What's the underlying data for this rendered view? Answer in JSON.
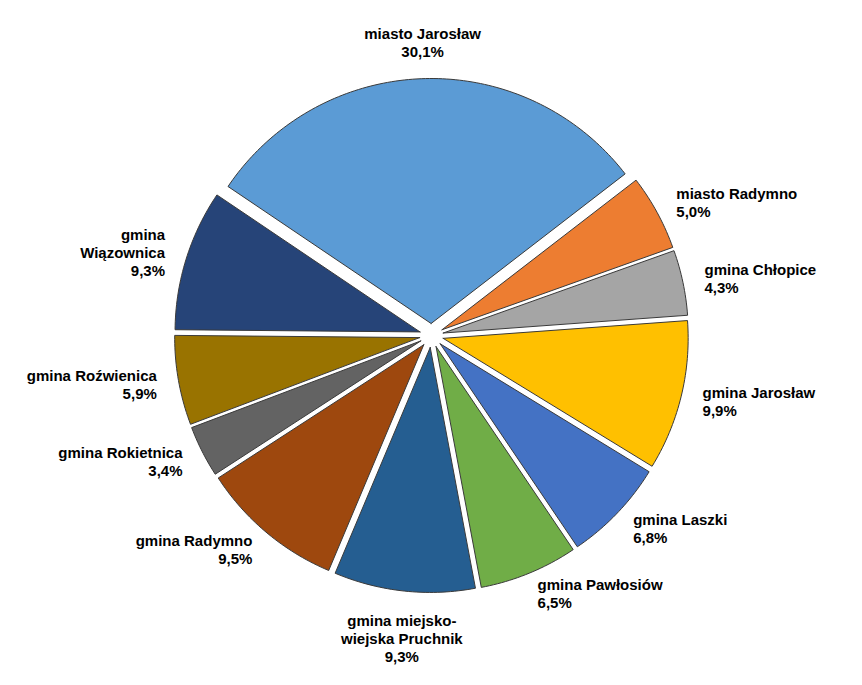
{
  "chart_data": {
    "type": "pie",
    "categories": [
      "miasto Jarosław",
      "miasto Radymno",
      "gmina Chłopice",
      "gmina Jarosław",
      "gmina Laszki",
      "gmina Pawłosiów",
      "gmina miejsko-\nwiejska Pruchnik",
      "gmina Radymno",
      "gmina Rokietnica",
      "gmina Roźwienica",
      "gmina\nWiązownica"
    ],
    "values": [
      30.1,
      5.0,
      4.3,
      9.9,
      6.8,
      6.5,
      9.3,
      9.5,
      3.4,
      5.9,
      9.3
    ],
    "value_labels": [
      "30,1%",
      "5,0%",
      "4,3%",
      "9,9%",
      "6,8%",
      "6,5%",
      "9,3%",
      "9,5%",
      "3,4%",
      "5,9%",
      "9,3%"
    ],
    "colors": [
      "#5B9BD5",
      "#ED7D31",
      "#A5A5A5",
      "#FFC000",
      "#4472C4",
      "#70AD47",
      "#255E91",
      "#9E480E",
      "#636363",
      "#997300",
      "#264478"
    ],
    "data_labels": true
  }
}
